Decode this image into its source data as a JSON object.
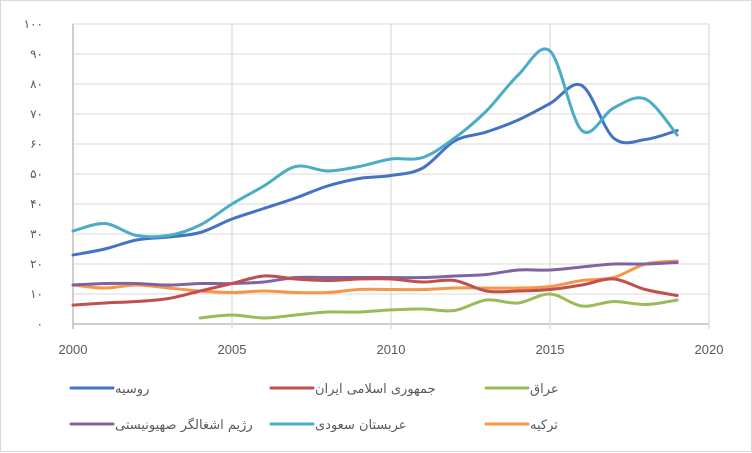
{
  "chart_data": {
    "type": "line",
    "title": "",
    "xlabel": "",
    "ylabel": "",
    "xlim": [
      2000,
      2020
    ],
    "ylim": [
      0,
      100
    ],
    "grid": true,
    "legend_position": "bottom",
    "x_ticks": [
      "2000",
      "2005",
      "2010",
      "2015",
      "2020"
    ],
    "y_ticks": [
      "۰",
      "۱۰",
      "۲۰",
      "۳۰",
      "۴۰",
      "۵۰",
      "۶۰",
      "۷۰",
      "۸۰",
      "۹۰",
      "۱۰۰"
    ],
    "x": [
      2000,
      2001,
      2002,
      2003,
      2004,
      2005,
      2006,
      2007,
      2008,
      2009,
      2010,
      2011,
      2012,
      2013,
      2014,
      2015,
      2016,
      2017,
      2018,
      2019
    ],
    "series": [
      {
        "name": "روسیه",
        "color": "#4472c4",
        "values": [
          23,
          25,
          28,
          29,
          30.5,
          35,
          38.5,
          42,
          46,
          48.5,
          49.5,
          52,
          61,
          64,
          68,
          73.5,
          79.5,
          62,
          61.5,
          64.5
        ]
      },
      {
        "name": "جمهوری اسلامی ایران",
        "color": "#c0504d",
        "values": [
          6.3,
          7,
          7.5,
          8.5,
          11,
          13.5,
          16,
          15,
          14.5,
          15,
          15,
          14,
          14.5,
          11,
          11,
          11.5,
          13,
          15,
          11.5,
          9.5
        ]
      },
      {
        "name": "عراق",
        "color": "#9bbb59",
        "values": [
          null,
          null,
          null,
          null,
          2,
          3,
          2,
          3,
          4,
          4,
          4.7,
          5,
          4.5,
          8,
          7,
          10,
          6,
          7.5,
          6.5,
          8
        ]
      },
      {
        "name": "رژیم اشغالگر صهیونیستی",
        "color": "#8064a2",
        "values": [
          13,
          13.5,
          13.5,
          13,
          13.5,
          13.5,
          14,
          15.5,
          15.5,
          15.5,
          15.5,
          15.5,
          16,
          16.5,
          18,
          18,
          19,
          20,
          20,
          20.5
        ]
      },
      {
        "name": "عربستان سعودی",
        "color": "#4bacc6",
        "values": [
          31,
          33.5,
          29.5,
          29.5,
          33,
          40,
          46,
          52.5,
          51,
          52.5,
          55,
          55.5,
          62,
          71,
          83,
          91,
          64.5,
          72,
          75,
          63
        ]
      },
      {
        "name": "ترکیه",
        "color": "#f79646",
        "values": [
          13,
          12,
          13,
          12,
          11,
          10.5,
          11,
          10.5,
          10.5,
          11.5,
          11.5,
          11.5,
          12,
          12,
          12,
          12.5,
          14.5,
          15.5,
          20,
          21
        ]
      }
    ]
  },
  "legend": {
    "items": [
      {
        "label": "روسیه",
        "color": "#4472c4"
      },
      {
        "label": "جمهوری اسلامی ایران",
        "color": "#c0504d"
      },
      {
        "label": "عراق",
        "color": "#9bbb59"
      },
      {
        "label": "رژیم اشغالگر صهیونیستی",
        "color": "#8064a2"
      },
      {
        "label": "عربستان سعودی",
        "color": "#4bacc6"
      },
      {
        "label": "ترکیه",
        "color": "#f79646"
      }
    ]
  },
  "colors": {
    "gridline": "#d9d9d9",
    "axis": "#bfbfbf",
    "tick_text": "#595959",
    "border": "#d9d9d9"
  }
}
